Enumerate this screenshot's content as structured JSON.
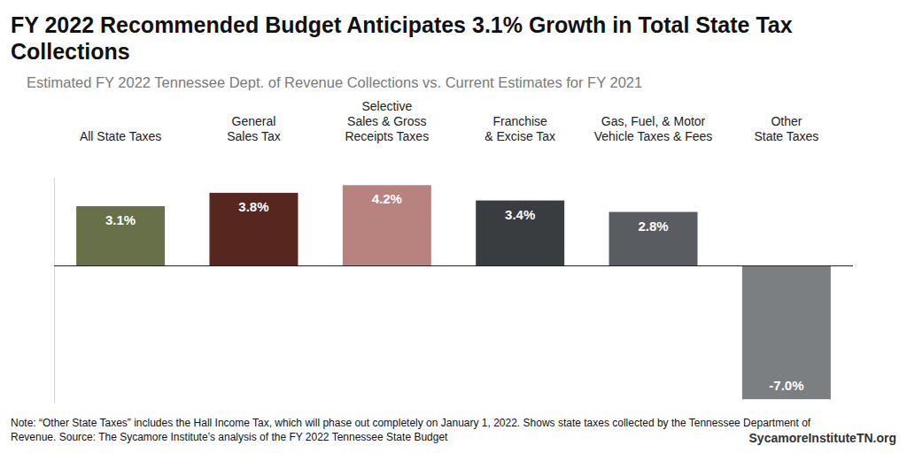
{
  "chart_data": {
    "type": "bar",
    "title": "FY 2022 Recommended Budget Anticipates 3.1% Growth in Total State Tax Collections",
    "subtitle": "Estimated FY 2022 Tennessee Dept. of Revenue Collections vs. Current Estimates for FY 2021",
    "note": "Note: “Other State Taxes” includes the Hall Income Tax, which will phase out completely on January 1, 2022. Shows state taxes collected by the Tennessee Department of Revenue. Source: The Sycamore Institute’s analysis of the FY 2022 Tennessee State Budget",
    "credit": "SycamoreInstituteTN.org",
    "categories": [
      "All State Taxes",
      "General\nSales Tax",
      "Selective\nSales & Gross\nReceipts Taxes",
      "Franchise\n& Excise Tax",
      "Gas, Fuel, & Motor\nVehicle Taxes & Fees",
      "Other\nState Taxes"
    ],
    "values": [
      3.1,
      3.8,
      4.2,
      3.4,
      2.8,
      -7.0
    ],
    "value_labels": [
      "3.1%",
      "3.8%",
      "4.2%",
      "3.4%",
      "2.8%",
      "-7.0%"
    ],
    "colors": [
      "#687049",
      "#57261f",
      "#b8827f",
      "#3a3d40",
      "#595d61",
      "#7b7f82"
    ],
    "ylim": [
      -7.2,
      4.6
    ],
    "yticks": [
      0
    ],
    "grid": true,
    "tick_labels": false,
    "data_labels": true
  }
}
